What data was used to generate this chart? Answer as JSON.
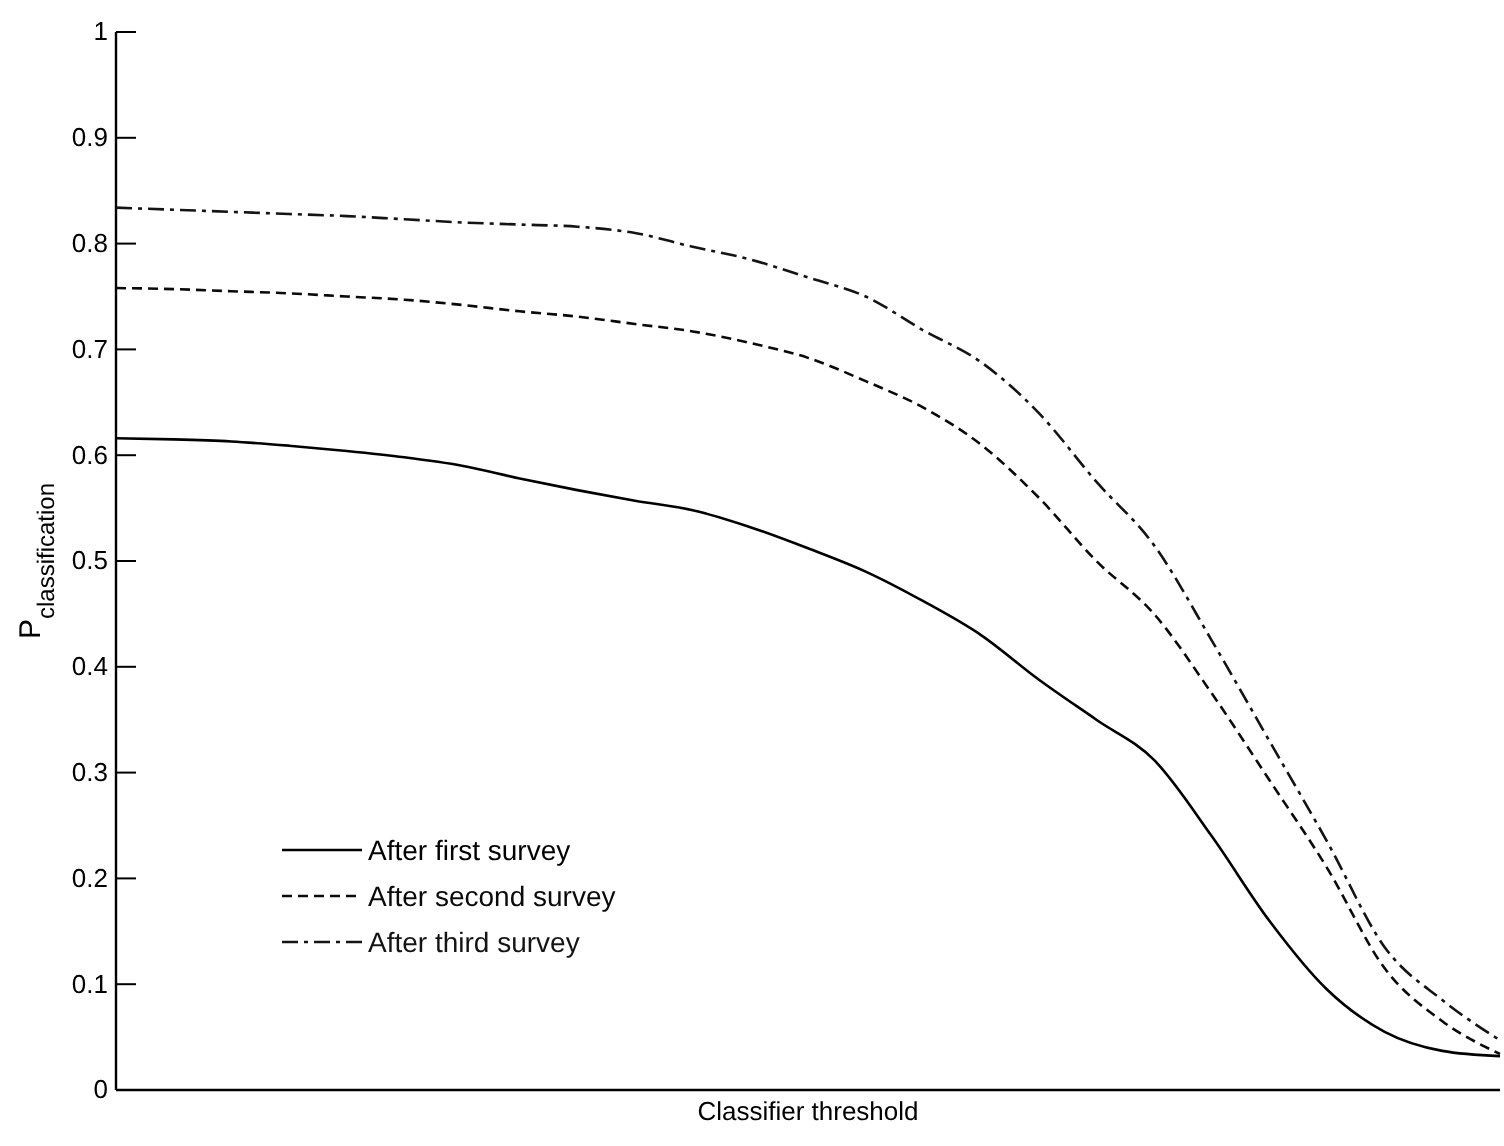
{
  "chart_data": {
    "type": "line",
    "xlabel": "Classifier threshold",
    "ylabel": "P$_{classification}$",
    "categories": [
      null,
      null,
      null,
      null,
      null,
      null,
      null,
      null,
      null,
      null,
      null,
      null,
      null,
      null,
      null,
      null,
      null,
      null,
      null,
      null,
      null,
      null,
      null,
      null,
      null
    ],
    "series": [
      {
        "name": "After first survey",
        "color": "#000000",
        "line_style": "solid",
        "values": [
          0.616,
          0.615,
          0.613,
          0.609,
          0.604,
          0.598,
          0.59,
          0.578,
          0.567,
          0.557,
          0.548,
          0.532,
          0.512,
          0.49,
          0.462,
          0.43,
          0.388,
          0.35,
          0.312,
          0.24,
          0.16,
          0.095,
          0.055,
          0.037,
          0.032
        ]
      },
      {
        "name": "After second survey",
        "color": "#0a0a0a",
        "line_style": "dashed",
        "values": [
          0.758,
          0.757,
          0.755,
          0.753,
          0.75,
          0.747,
          0.742,
          0.736,
          0.731,
          0.724,
          0.717,
          0.706,
          0.692,
          0.67,
          0.645,
          0.61,
          0.56,
          0.5,
          0.45,
          0.375,
          0.293,
          0.21,
          0.115,
          0.065,
          0.034
        ]
      },
      {
        "name": "After third survey",
        "color": "#141414",
        "line_style": "dashdot",
        "values": [
          0.834,
          0.832,
          0.83,
          0.828,
          0.826,
          0.823,
          0.82,
          0.818,
          0.816,
          0.81,
          0.797,
          0.785,
          0.768,
          0.75,
          0.718,
          0.688,
          0.64,
          0.575,
          0.515,
          0.425,
          0.33,
          0.235,
          0.135,
          0.085,
          0.047
        ]
      }
    ],
    "ylim": [
      0,
      1
    ],
    "yticks": [
      0,
      0.1,
      0.2,
      0.3,
      0.4,
      0.5,
      0.6,
      0.7,
      0.8,
      0.9,
      1
    ],
    "tick_labels": "y",
    "grid": false,
    "legend": "bottom left",
    "marker": "none"
  }
}
